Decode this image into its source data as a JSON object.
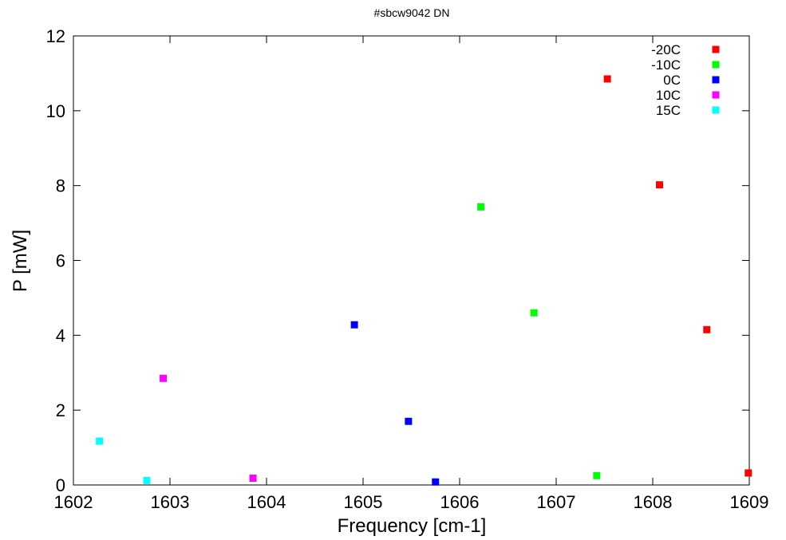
{
  "chart_data": {
    "type": "scatter",
    "title": "#sbcw9042 DN",
    "xlabel": "Frequency [cm-1]",
    "ylabel": "P [mW]",
    "xlim": [
      1602,
      1609
    ],
    "ylim": [
      0,
      12
    ],
    "xticks": [
      1602,
      1603,
      1604,
      1605,
      1606,
      1607,
      1608,
      1609
    ],
    "yticks": [
      0,
      2,
      4,
      6,
      8,
      10,
      12
    ],
    "grid": false,
    "legend_position": "top-right",
    "series": [
      {
        "name": "-20C",
        "color": "#ff0000",
        "points": [
          [
            1607.53,
            10.85
          ],
          [
            1608.07,
            8.02
          ],
          [
            1608.56,
            4.15
          ],
          [
            1608.99,
            0.32
          ]
        ]
      },
      {
        "name": "-10C",
        "color": "#00ff00",
        "points": [
          [
            1606.22,
            7.43
          ],
          [
            1606.77,
            4.6
          ],
          [
            1607.42,
            0.25
          ]
        ]
      },
      {
        "name": "0C",
        "color": "#0000ff",
        "points": [
          [
            1604.91,
            4.28
          ],
          [
            1605.47,
            1.7
          ],
          [
            1605.75,
            0.08
          ]
        ]
      },
      {
        "name": "10C",
        "color": "#ff00ff",
        "points": [
          [
            1602.93,
            2.85
          ],
          [
            1603.86,
            0.18
          ]
        ]
      },
      {
        "name": "15C",
        "color": "#00ffff",
        "points": [
          [
            1602.27,
            1.17
          ],
          [
            1602.76,
            0.12
          ]
        ]
      }
    ]
  }
}
